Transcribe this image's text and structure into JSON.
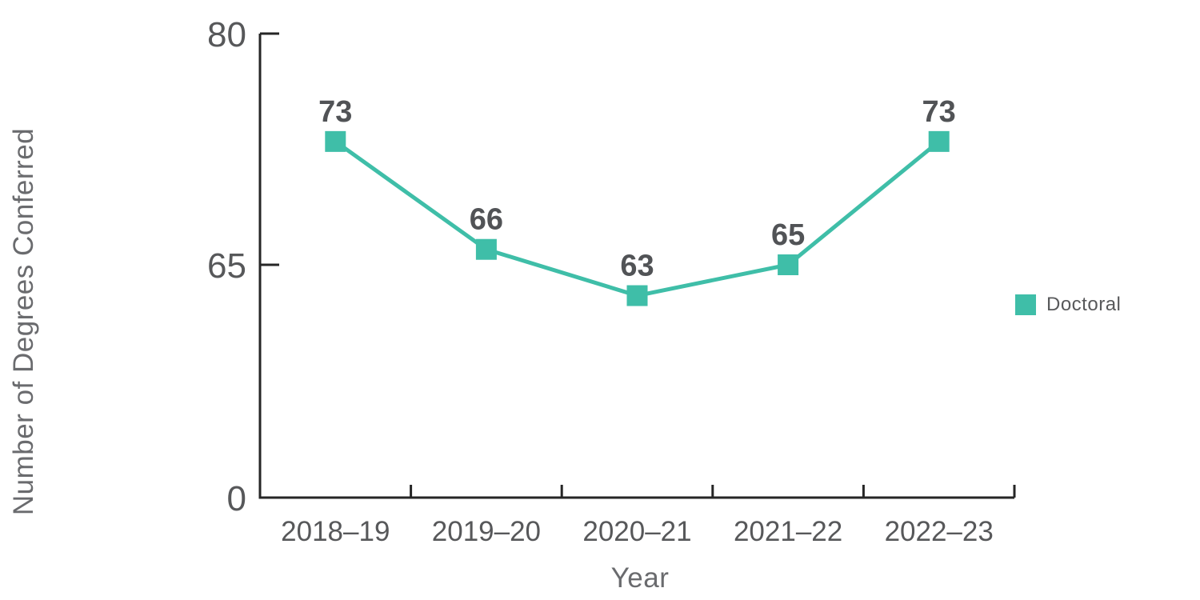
{
  "chart_data": {
    "type": "line",
    "xlabel": "Year",
    "ylabel": "Number of Degrees Conferred",
    "categories": [
      "2018–19",
      "2019–20",
      "2020–21",
      "2021–22",
      "2022–23"
    ],
    "series": [
      {
        "name": "Doctoral",
        "values": [
          73,
          66,
          63,
          65,
          73
        ],
        "color": "#3fbea8",
        "marker": "square"
      }
    ],
    "value_labels": [
      "73",
      "66",
      "63",
      "65",
      "73"
    ],
    "y_ticks": [
      0,
      65,
      80
    ],
    "grid": false,
    "legend_position": "right",
    "colors": {
      "series": "#3fbea8",
      "axis": "#262626",
      "tick_label": "#57585a",
      "value_label": "#515356",
      "axis_title": "#6a6b6e",
      "background": "#ffffff"
    }
  }
}
